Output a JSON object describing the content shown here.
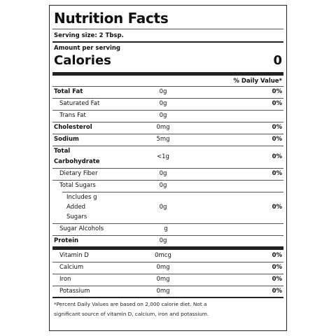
{
  "title": "Nutrition Facts",
  "serving_size": "Serving size: 2 Tbsp.",
  "amount_per_serving": "Amount per serving",
  "calories_label": "Calories",
  "calories_value": "0",
  "daily_value_header": "% Daily Value*",
  "rows": [
    {
      "label": "Total Fat",
      "amount": "0g",
      "dv": "0%"
    },
    {
      "label": "Saturated Fat",
      "amount": "0g",
      "dv": "0%"
    },
    {
      "label": "Trans Fat",
      "amount": "0g",
      "dv": ""
    },
    {
      "label": "Cholesterol",
      "amount": "0mg",
      "dv": "0%"
    },
    {
      "label": "Sodium",
      "amount": "5mg",
      "dv": "0%"
    },
    {
      "label_line1": "Total",
      "label_line2": "Carbohydrate",
      "amount": "<1g",
      "dv": "0%"
    },
    {
      "label": "Dietary Fiber",
      "amount": "0g",
      "dv": "0%"
    },
    {
      "label": "Total Sugars",
      "amount": "0g",
      "dv": ""
    },
    {
      "label_line1": "Includes g",
      "label_line2": "Added",
      "label_line3": "Sugars",
      "amount": "0g",
      "dv": "0%"
    },
    {
      "label": "Sugar Alcohols",
      "amount": "g",
      "dv": ""
    },
    {
      "label": "Protein",
      "amount": "0g",
      "dv": ""
    }
  ],
  "vitamins": [
    {
      "label": "Vitamin D",
      "amount": "0mcg",
      "dv": "0%"
    },
    {
      "label": "Calcium",
      "amount": "0mg",
      "dv": "0%"
    },
    {
      "label": "Iron",
      "amount": "0mg",
      "dv": "0%"
    },
    {
      "label": "Potassium",
      "amount": "0mg",
      "dv": "0%"
    }
  ],
  "footnote_line1": "*Percent Daily Values are based on 2,000 calorie diet. Not a",
  "footnote_line2": "significant source of vitamin D, calcium, iron and potassium."
}
